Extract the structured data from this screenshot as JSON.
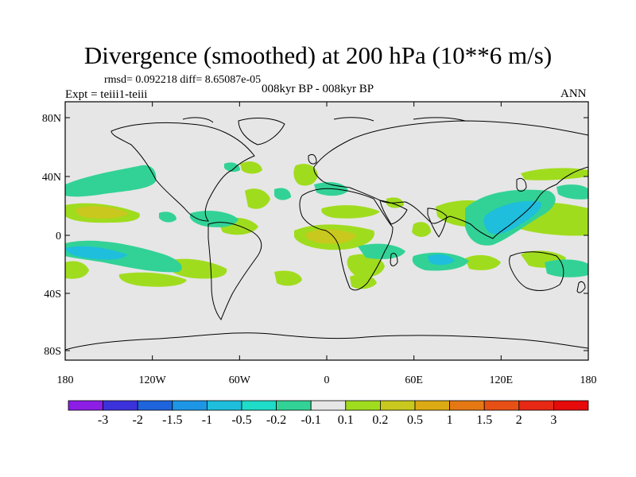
{
  "title": "Divergence (smoothed) at 200 hPa (10**6 m/s)",
  "stats": "rmsd= 0.092218  diff= 8.65087e-05",
  "expt": "Expt = teiii1-teiii",
  "period": "008kyr BP - 008kyr BP",
  "season": "ANN",
  "y_ticks": [
    "80N",
    "40N",
    "0",
    "40S",
    "80S"
  ],
  "x_ticks": [
    "180",
    "120W",
    "60W",
    "0",
    "60E",
    "120E",
    "180"
  ],
  "colorbar": {
    "labels": [
      "-3",
      "-2",
      "-1.5",
      "-1",
      "-0.5",
      "-0.2",
      "-0.1",
      "0.1",
      "0.2",
      "0.5",
      "1",
      "1.5",
      "2",
      "3"
    ],
    "colors": [
      "#8c1ee6",
      "#3c32dc",
      "#1e64dc",
      "#1e96e6",
      "#1ebedc",
      "#1edcc8",
      "#32d296",
      "#e6e6e6",
      "#a0dc1e",
      "#c8c81e",
      "#dcaa14",
      "#e67814",
      "#e65014",
      "#e62814",
      "#e60a0a"
    ]
  },
  "field_colors": {
    "background": "#e6e6e6",
    "pos_weak": "#a0dc1e",
    "pos_mid": "#c8c81e",
    "neg_weak": "#32d296",
    "neg_mid": "#1ebedc"
  }
}
